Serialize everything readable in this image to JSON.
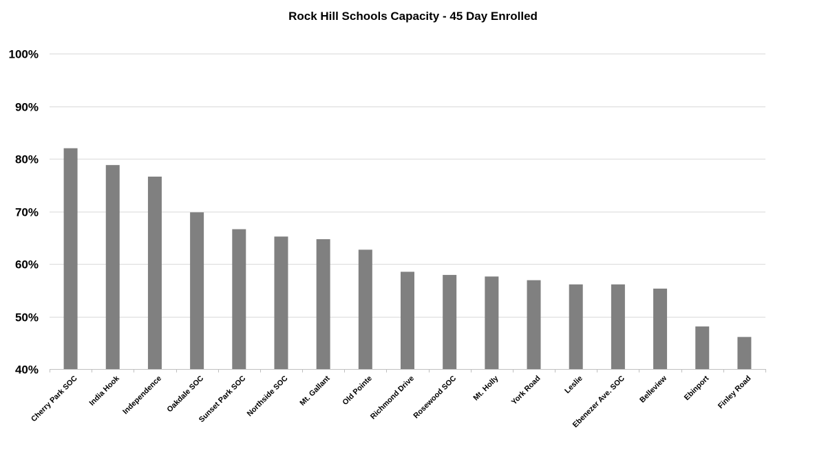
{
  "chart_data": {
    "type": "bar",
    "title": "Rock Hill Schools Capacity - 45 Day Enrolled",
    "xlabel": "",
    "ylabel": "",
    "categories": [
      "Cherry Park SOC",
      "India Hook",
      "Independence",
      "Oakdale SOC",
      "Sunset Park SOC",
      "Northside SOC",
      "Mt. Gallant",
      "Old Pointe",
      "Richmond Drive",
      "Rosewood SOC",
      "Mt. Holly",
      "York Road",
      "Leslie",
      "Ebenezer Ave. SOC",
      "Belleview",
      "Ebinport",
      "Finley Road"
    ],
    "values": [
      82,
      78.8,
      76.6,
      69.8,
      66.6,
      65.2,
      64.7,
      62.7,
      58.5,
      57.9,
      57.6,
      56.9,
      56.1,
      56.1,
      55.3,
      48.1,
      46.1
    ],
    "ylim": [
      40,
      100
    ],
    "yticks": [
      40,
      50,
      60,
      70,
      80,
      90,
      100
    ],
    "ytick_labels": [
      "40%",
      "50%",
      "60%",
      "70%",
      "80%",
      "90%",
      "100%"
    ],
    "grid": true,
    "bar_color": "#808080"
  }
}
